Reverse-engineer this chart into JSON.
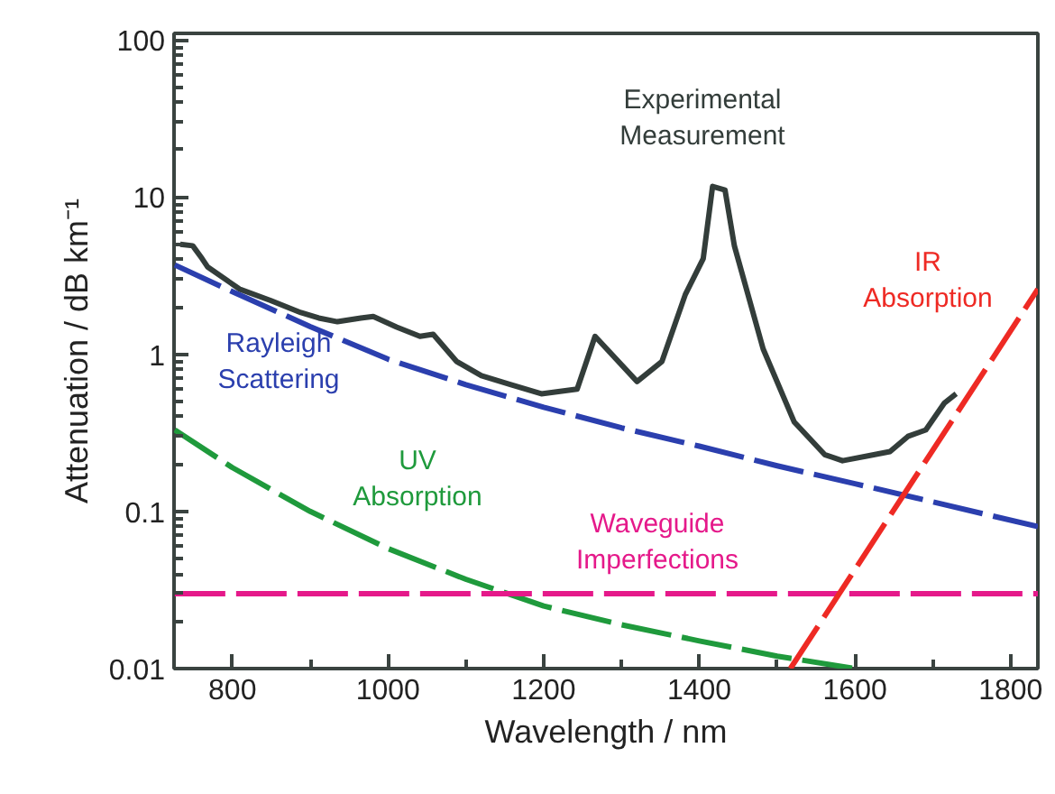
{
  "chart_data": {
    "type": "line",
    "xlabel": "Wavelength / nm",
    "ylabel": "Attenuation / dB km⁻¹",
    "log": "y",
    "xlim": [
      725,
      1835
    ],
    "ylim": [
      0.01,
      110
    ],
    "xticks": [
      800,
      1000,
      1200,
      1400,
      1600,
      1800
    ],
    "yticks": [
      0.01,
      0.1,
      1,
      10,
      100
    ],
    "grid": false,
    "marker": "none",
    "series": [
      {
        "color": "#333d3a",
        "line_style": "solid",
        "x": [
          733,
          749,
          761,
          768,
          809,
          849,
          888,
          911,
          935,
          965,
          981,
          1011,
          1041,
          1058,
          1088,
          1120,
          1158,
          1197,
          1243,
          1266,
          1320,
          1352,
          1382,
          1405,
          1417,
          1433,
          1445,
          1482,
          1522,
          1561,
          1584,
          1645,
          1668,
          1691,
          1715,
          1730
        ],
        "values": [
          5.0,
          4.9,
          4.06,
          3.6,
          2.6,
          2.2,
          1.84,
          1.7,
          1.61,
          1.7,
          1.74,
          1.49,
          1.3,
          1.34,
          0.9,
          0.73,
          0.64,
          0.56,
          0.6,
          1.3,
          0.67,
          0.9,
          2.4,
          4.06,
          11.7,
          11.1,
          4.9,
          1.08,
          0.37,
          0.23,
          0.21,
          0.24,
          0.3,
          0.33,
          0.49,
          0.56
        ]
      },
      {
        "color": "#2b3fae",
        "line_style": "dashed",
        "x": [
          726,
          800,
          900,
          1000,
          1100,
          1200,
          1300,
          1400,
          1500,
          1600,
          1700,
          1835
        ],
        "values": [
          3.7,
          2.5,
          1.5,
          0.93,
          0.64,
          0.46,
          0.34,
          0.26,
          0.195,
          0.15,
          0.115,
          0.08
        ]
      },
      {
        "color": "#1f9a3c",
        "line_style": "dashed",
        "x": [
          726,
          800,
          900,
          1000,
          1100,
          1200,
          1300,
          1400,
          1500,
          1600
        ],
        "values": [
          0.33,
          0.19,
          0.1,
          0.058,
          0.037,
          0.025,
          0.019,
          0.015,
          0.012,
          0.01
        ]
      },
      {
        "color": "#e5198a",
        "line_style": "dashed",
        "x": [
          726,
          1835
        ],
        "values": [
          0.03,
          0.03
        ]
      },
      {
        "color": "#ee2a24",
        "line_style": "dashed",
        "x": [
          1517,
          1835
        ],
        "values": [
          0.01,
          2.6
        ]
      }
    ],
    "annotations": [
      "Experimental\nMeasurement",
      "Rayleigh\nScattering",
      "UV\nAbsorption",
      "Waveguide\nImperfections",
      "IR\nAbsorption"
    ]
  }
}
